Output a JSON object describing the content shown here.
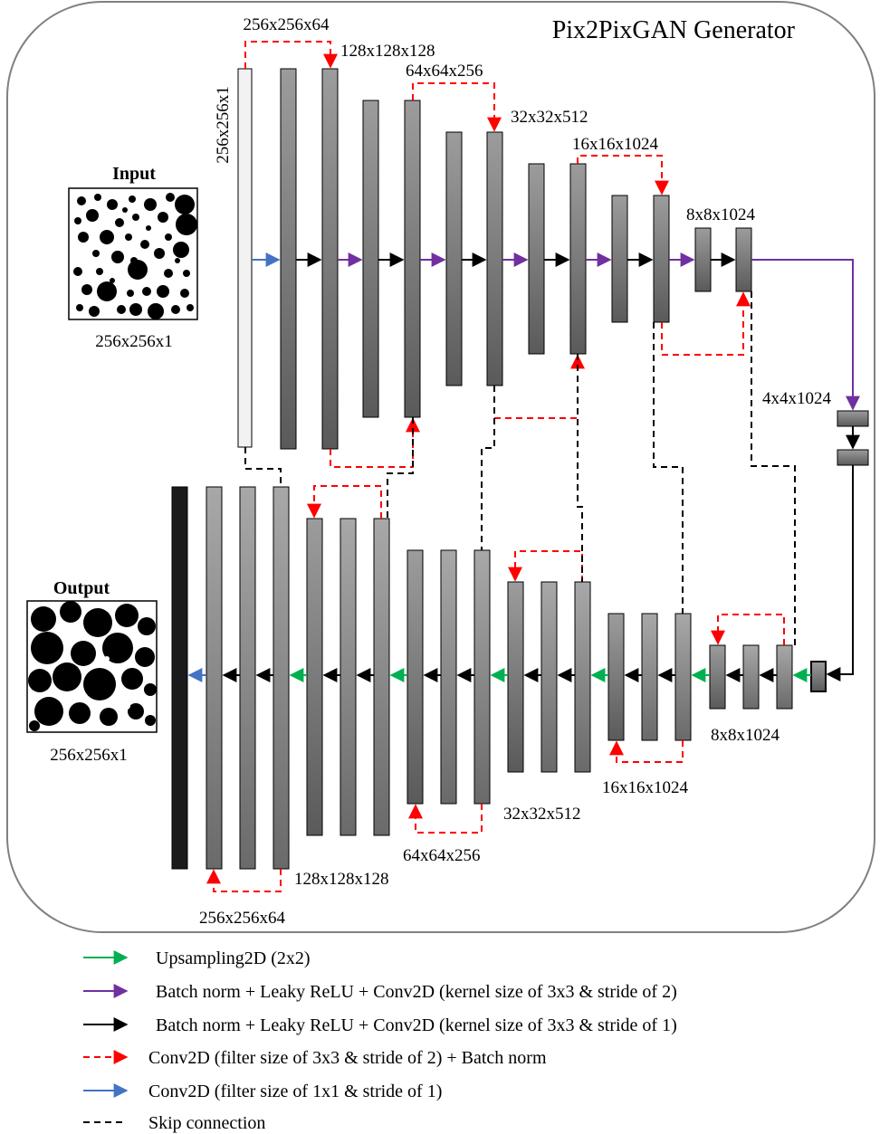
{
  "title": "Pix2PixGAN Generator",
  "input": {
    "heading": "Input",
    "dims": "256x256x1"
  },
  "output": {
    "heading": "Output",
    "dims": "256x256x1"
  },
  "encoder_labels": {
    "first_vertical": "256x256x1",
    "e1": "256x256x64",
    "e2": "128x128x128",
    "e3": "64x64x256",
    "e4": "32x32x512",
    "e5": "16x16x1024",
    "e6": "8x8x1024",
    "bottleneck": "4x4x1024"
  },
  "decoder_labels": {
    "d6": "8x8x1024",
    "d5": "16x16x1024",
    "d4": "32x32x512",
    "d3": "64x64x256",
    "d2": "128x128x128",
    "d1": "256x256x64"
  },
  "legend": [
    {
      "kind": "upsampling",
      "label": "Upsampling2D (2x2)",
      "color": "#00b050"
    },
    {
      "kind": "conv-stride2",
      "label": "Batch norm + Leaky ReLU + Conv2D (kernel size of 3x3 & stride of 2)",
      "color": "#7030a0"
    },
    {
      "kind": "conv-stride1",
      "label": "Batch norm + Leaky ReLU + Conv2D (kernel size of 3x3 & stride of 1)",
      "color": "#000000"
    },
    {
      "kind": "conv-filter-stride2",
      "label": "Conv2D (filter size of 3x3 & stride of 2) + Batch norm",
      "color": "#ff0000"
    },
    {
      "kind": "conv-1x1",
      "label": "Conv2D (filter size of 1x1 & stride of 1)",
      "color": "#4472c4"
    },
    {
      "kind": "skip",
      "label": "Skip connection",
      "color": "#000000"
    }
  ]
}
